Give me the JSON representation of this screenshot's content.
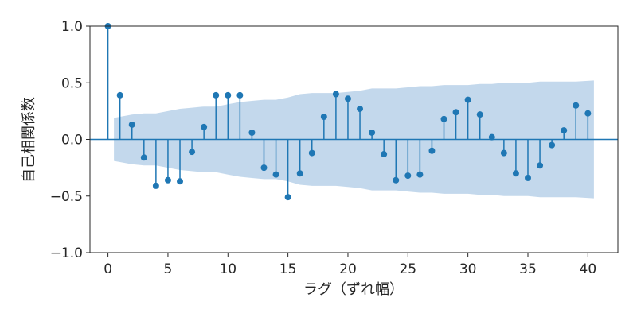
{
  "chart_data": {
    "type": "stem",
    "title": "",
    "xlabel": "ラグ（ずれ幅）",
    "ylabel": "自己相関係数",
    "xlim": [
      -1.5,
      42.5
    ],
    "ylim": [
      -1.0,
      1.0
    ],
    "xticks": [
      0,
      5,
      10,
      15,
      20,
      25,
      30,
      35,
      40
    ],
    "yticks": [
      -1.0,
      -0.5,
      0.0,
      0.5,
      1.0
    ],
    "xtick_labels": [
      "0",
      "5",
      "10",
      "15",
      "20",
      "25",
      "30",
      "35",
      "40"
    ],
    "ytick_labels": [
      "−1.0",
      "−0.5",
      "0.0",
      "0.5",
      "1.0"
    ],
    "grid": false,
    "colors": {
      "stem": "#1f77b4",
      "confidence_band": "#c3d8ec",
      "axes": "#262626"
    },
    "x": [
      0,
      1,
      2,
      3,
      4,
      5,
      6,
      7,
      8,
      9,
      10,
      11,
      12,
      13,
      14,
      15,
      16,
      17,
      18,
      19,
      20,
      21,
      22,
      23,
      24,
      25,
      26,
      27,
      28,
      29,
      30,
      31,
      32,
      33,
      34,
      35,
      36,
      37,
      38,
      39,
      40
    ],
    "acf": [
      1.0,
      0.39,
      0.13,
      -0.16,
      -0.41,
      -0.36,
      -0.37,
      -0.11,
      0.11,
      0.39,
      0.39,
      0.39,
      0.06,
      -0.25,
      -0.31,
      -0.51,
      -0.3,
      -0.12,
      0.2,
      0.4,
      0.36,
      0.27,
      0.06,
      -0.13,
      -0.36,
      -0.32,
      -0.31,
      -0.1,
      0.18,
      0.24,
      0.35,
      0.22,
      0.02,
      -0.12,
      -0.3,
      -0.34,
      -0.23,
      -0.05,
      0.08,
      0.3,
      0.23
    ],
    "confidence_band": {
      "x": [
        0.5,
        1,
        2,
        3,
        4,
        5,
        6,
        7,
        8,
        9,
        10,
        11,
        12,
        13,
        14,
        15,
        16,
        17,
        18,
        19,
        20,
        21,
        22,
        23,
        24,
        25,
        26,
        27,
        28,
        29,
        30,
        31,
        32,
        33,
        34,
        35,
        36,
        37,
        38,
        39,
        40.5
      ],
      "upper": [
        0.19,
        0.2,
        0.22,
        0.23,
        0.23,
        0.25,
        0.27,
        0.28,
        0.29,
        0.29,
        0.31,
        0.33,
        0.34,
        0.35,
        0.35,
        0.37,
        0.4,
        0.41,
        0.41,
        0.41,
        0.42,
        0.43,
        0.45,
        0.45,
        0.45,
        0.46,
        0.47,
        0.47,
        0.48,
        0.48,
        0.48,
        0.49,
        0.49,
        0.5,
        0.5,
        0.5,
        0.51,
        0.51,
        0.51,
        0.51,
        0.52
      ]
    }
  }
}
